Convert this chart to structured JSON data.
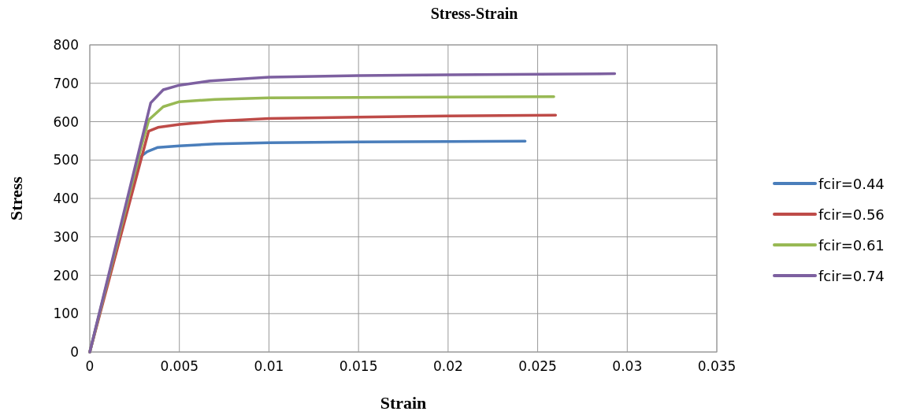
{
  "chart_data": {
    "type": "line",
    "title": "Stress-Strain",
    "xlabel": "Strain",
    "ylabel": "Stress",
    "xlim": [
      0,
      0.035
    ],
    "xticks": [
      0,
      0.005,
      0.01,
      0.015,
      0.02,
      0.025,
      0.03,
      0.035
    ],
    "ylim": [
      0,
      800
    ],
    "yticks": [
      0,
      100,
      200,
      300,
      400,
      500,
      600,
      700,
      800
    ],
    "grid": true,
    "legend": "right",
    "marker": "none",
    "line_style": "solid",
    "series": [
      {
        "name": "fcir=0.44",
        "color": "#4a7ebb",
        "x": [
          0,
          0.00275,
          0.0032,
          0.0038,
          0.005,
          0.007,
          0.01,
          0.015,
          0.02,
          0.0243
        ],
        "values": [
          0,
          506,
          522,
          533,
          537,
          542,
          545,
          547,
          548,
          549
        ]
      },
      {
        "name": "fcir=0.56",
        "color": "#be4b48",
        "x": [
          0,
          0.00328,
          0.0038,
          0.005,
          0.007,
          0.01,
          0.015,
          0.02,
          0.026
        ],
        "values": [
          0,
          575,
          585,
          593,
          601,
          608,
          612,
          615,
          617
        ]
      },
      {
        "name": "fcir=0.61",
        "color": "#98b954",
        "x": [
          0,
          0.0029,
          0.0033,
          0.0041,
          0.005,
          0.007,
          0.01,
          0.015,
          0.02,
          0.0259
        ],
        "values": [
          0,
          540,
          605,
          639,
          652,
          658,
          662,
          663,
          664,
          665
        ]
      },
      {
        "name": "fcir=0.74",
        "color": "#7d60a0",
        "x": [
          0,
          0.0034,
          0.0041,
          0.005,
          0.0067,
          0.01,
          0.015,
          0.02,
          0.0293
        ],
        "values": [
          0,
          649,
          683,
          695,
          706,
          716,
          720,
          722,
          725
        ]
      }
    ]
  }
}
